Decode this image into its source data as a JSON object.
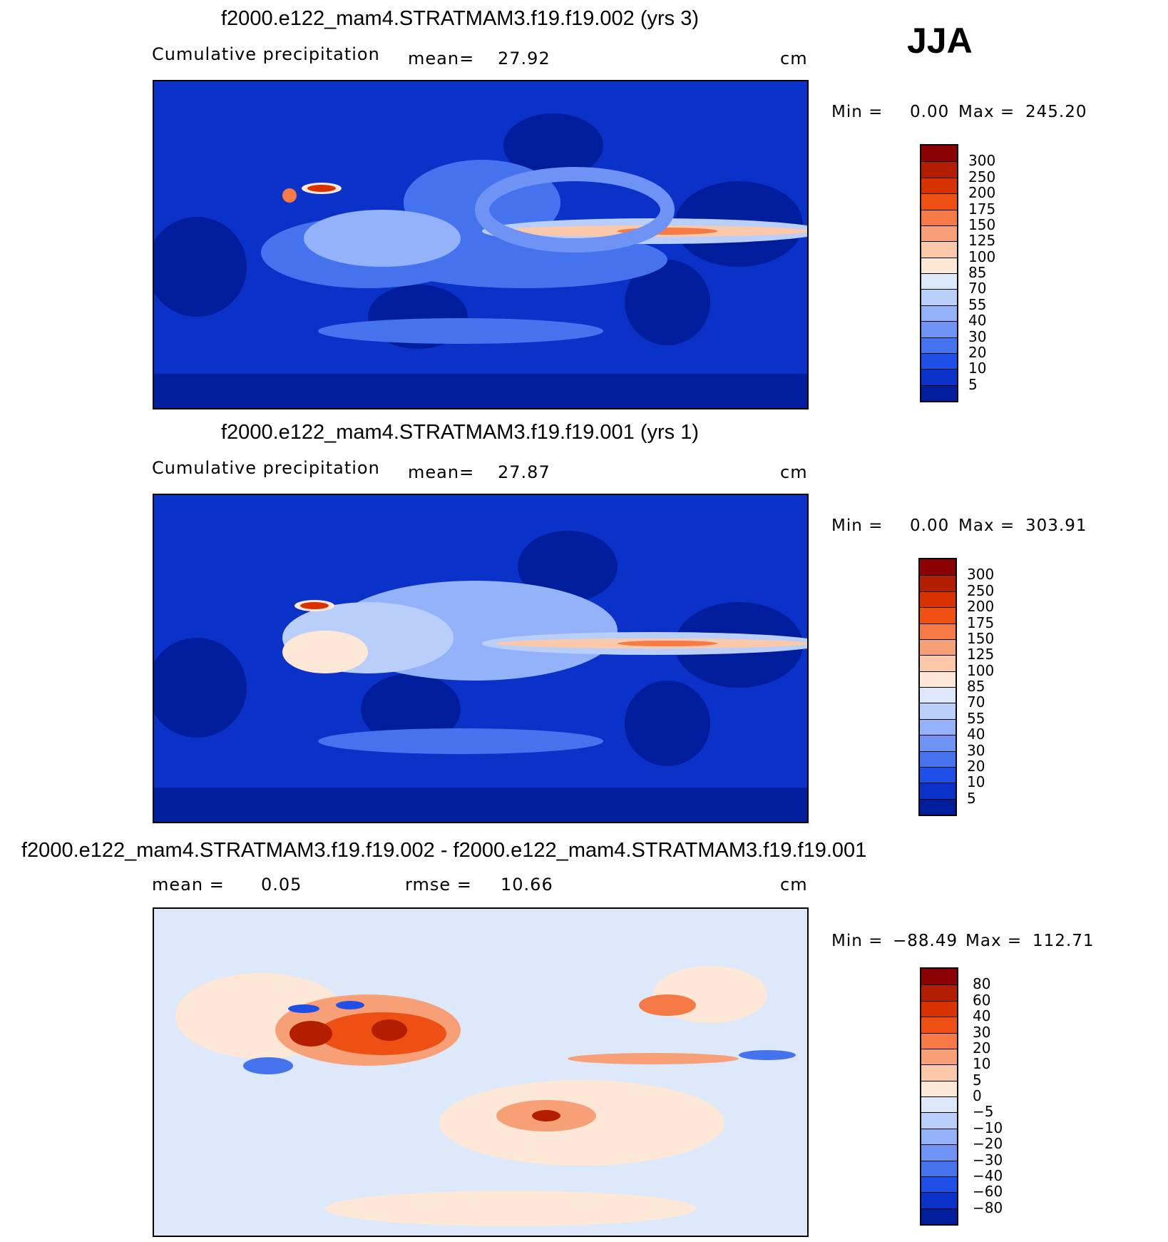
{
  "season": "JJA",
  "panels": [
    {
      "title": "f2000.e122_mam4.STRATMAM3.f19.f19.002 (yrs 3)",
      "var_label": "Cumulative precipitation",
      "stat1_label": "mean=",
      "stat1_value": "27.92",
      "units": "cm",
      "min_label": "Min =",
      "min_value": "0.00",
      "max_label": "Max =",
      "max_value": "245.20",
      "levels": [
        "300",
        "250",
        "200",
        "175",
        "150",
        "125",
        "100",
        "85",
        "70",
        "55",
        "40",
        "30",
        "20",
        "10",
        "5"
      ],
      "colors": [
        "#8b0000",
        "#b41e00",
        "#d73200",
        "#ee5014",
        "#f57a46",
        "#f7a078",
        "#fbc8aa",
        "#fde8d8",
        "#dde9fa",
        "#b9cffa",
        "#94b2fa",
        "#6e93f5",
        "#4573ee",
        "#1f4fe6",
        "#0a32c8",
        "#001e9b"
      ]
    },
    {
      "title": "f2000.e122_mam4.STRATMAM3.f19.f19.001 (yrs 1)",
      "var_label": "Cumulative precipitation",
      "stat1_label": "mean=",
      "stat1_value": "27.87",
      "units": "cm",
      "min_label": "Min =",
      "min_value": "0.00",
      "max_label": "Max =",
      "max_value": "303.91",
      "levels": [
        "300",
        "250",
        "200",
        "175",
        "150",
        "125",
        "100",
        "85",
        "70",
        "55",
        "40",
        "30",
        "20",
        "10",
        "5"
      ],
      "colors": [
        "#8b0000",
        "#b41e00",
        "#d73200",
        "#ee5014",
        "#f57a46",
        "#f7a078",
        "#fbc8aa",
        "#fde8d8",
        "#dde9fa",
        "#b9cffa",
        "#94b2fa",
        "#6e93f5",
        "#4573ee",
        "#1f4fe6",
        "#0a32c8",
        "#001e9b"
      ]
    },
    {
      "title": "f2000.e122_mam4.STRATMAM3.f19.f19.002 - f2000.e122_mam4.STRATMAM3.f19.f19.001",
      "stat1_label": "mean =",
      "stat1_value": "0.05",
      "stat2_label": "rmse =",
      "stat2_value": "10.66",
      "units": "cm",
      "min_label": "Min =",
      "min_value": "−88.49",
      "max_label": "Max =",
      "max_value": "112.71",
      "levels": [
        "80",
        "60",
        "40",
        "30",
        "20",
        "10",
        "5",
        "0",
        "−5",
        "−10",
        "−20",
        "−30",
        "−40",
        "−60",
        "−80"
      ],
      "colors": [
        "#8b0000",
        "#b41e00",
        "#d73200",
        "#ee5014",
        "#f57a46",
        "#f7a078",
        "#fbc8aa",
        "#fde8d8",
        "#dde9fa",
        "#b9cffa",
        "#94b2fa",
        "#6e93f5",
        "#4573ee",
        "#1f4fe6",
        "#0a32c8",
        "#001e9b"
      ]
    }
  ]
}
